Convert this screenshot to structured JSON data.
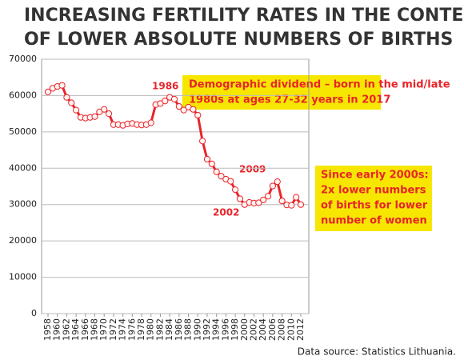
{
  "chart_data": {
    "type": "line",
    "title": [
      "INCREASING FERTILITY RATES IN THE CONTEXT",
      "OF LOWER ABSOLUTE NUMBERS OF BIRTHS"
    ],
    "categories": [
      "1958",
      null,
      "1960",
      null,
      "1962",
      null,
      "1964",
      null,
      "1966",
      null,
      "1968",
      null,
      "1970",
      null,
      "1972",
      null,
      "1974",
      null,
      "1976",
      null,
      "1978",
      null,
      "1980",
      null,
      "1982",
      null,
      "1984",
      null,
      "1986",
      null,
      "1988",
      null,
      "1990",
      null,
      "1992",
      null,
      "1994",
      null,
      "1996",
      null,
      "1998",
      null,
      "2000",
      null,
      "2002",
      null,
      "2004",
      null,
      "2006",
      null,
      "2008",
      null,
      "2010",
      null,
      "2012"
    ],
    "series": [
      {
        "color": "#e8242a",
        "values": [
          61000,
          62000,
          62500,
          62800,
          59500,
          58000,
          56000,
          54000,
          53800,
          54000,
          54200,
          55500,
          56200,
          55000,
          52000,
          52000,
          51800,
          52200,
          52300,
          52000,
          51900,
          52000,
          52500,
          57500,
          57800,
          58500,
          59500,
          59000,
          57000,
          56000,
          56800,
          56200,
          54600,
          47500,
          42500,
          41200,
          39000,
          37800,
          37000,
          36400,
          34100,
          31600,
          30000,
          30600,
          30400,
          30500,
          31300,
          32300,
          35100,
          36300,
          31000,
          29900,
          29800,
          32000,
          30000
        ]
      }
    ],
    "ylim": [
      0,
      70000
    ],
    "yticks": [
      0,
      10000,
      20000,
      30000,
      40000,
      50000,
      60000,
      70000
    ],
    "grid": true,
    "annotations": [
      "1986",
      "2009",
      "2002",
      "Demographic dividend – born in the mid/late",
      "1980s at ages 27-32 years in 2017",
      "Since early 2000s:",
      "2x lower numbers",
      "of births for lower",
      "number of women"
    ],
    "source": "Data source: Statistics Lithuania."
  }
}
